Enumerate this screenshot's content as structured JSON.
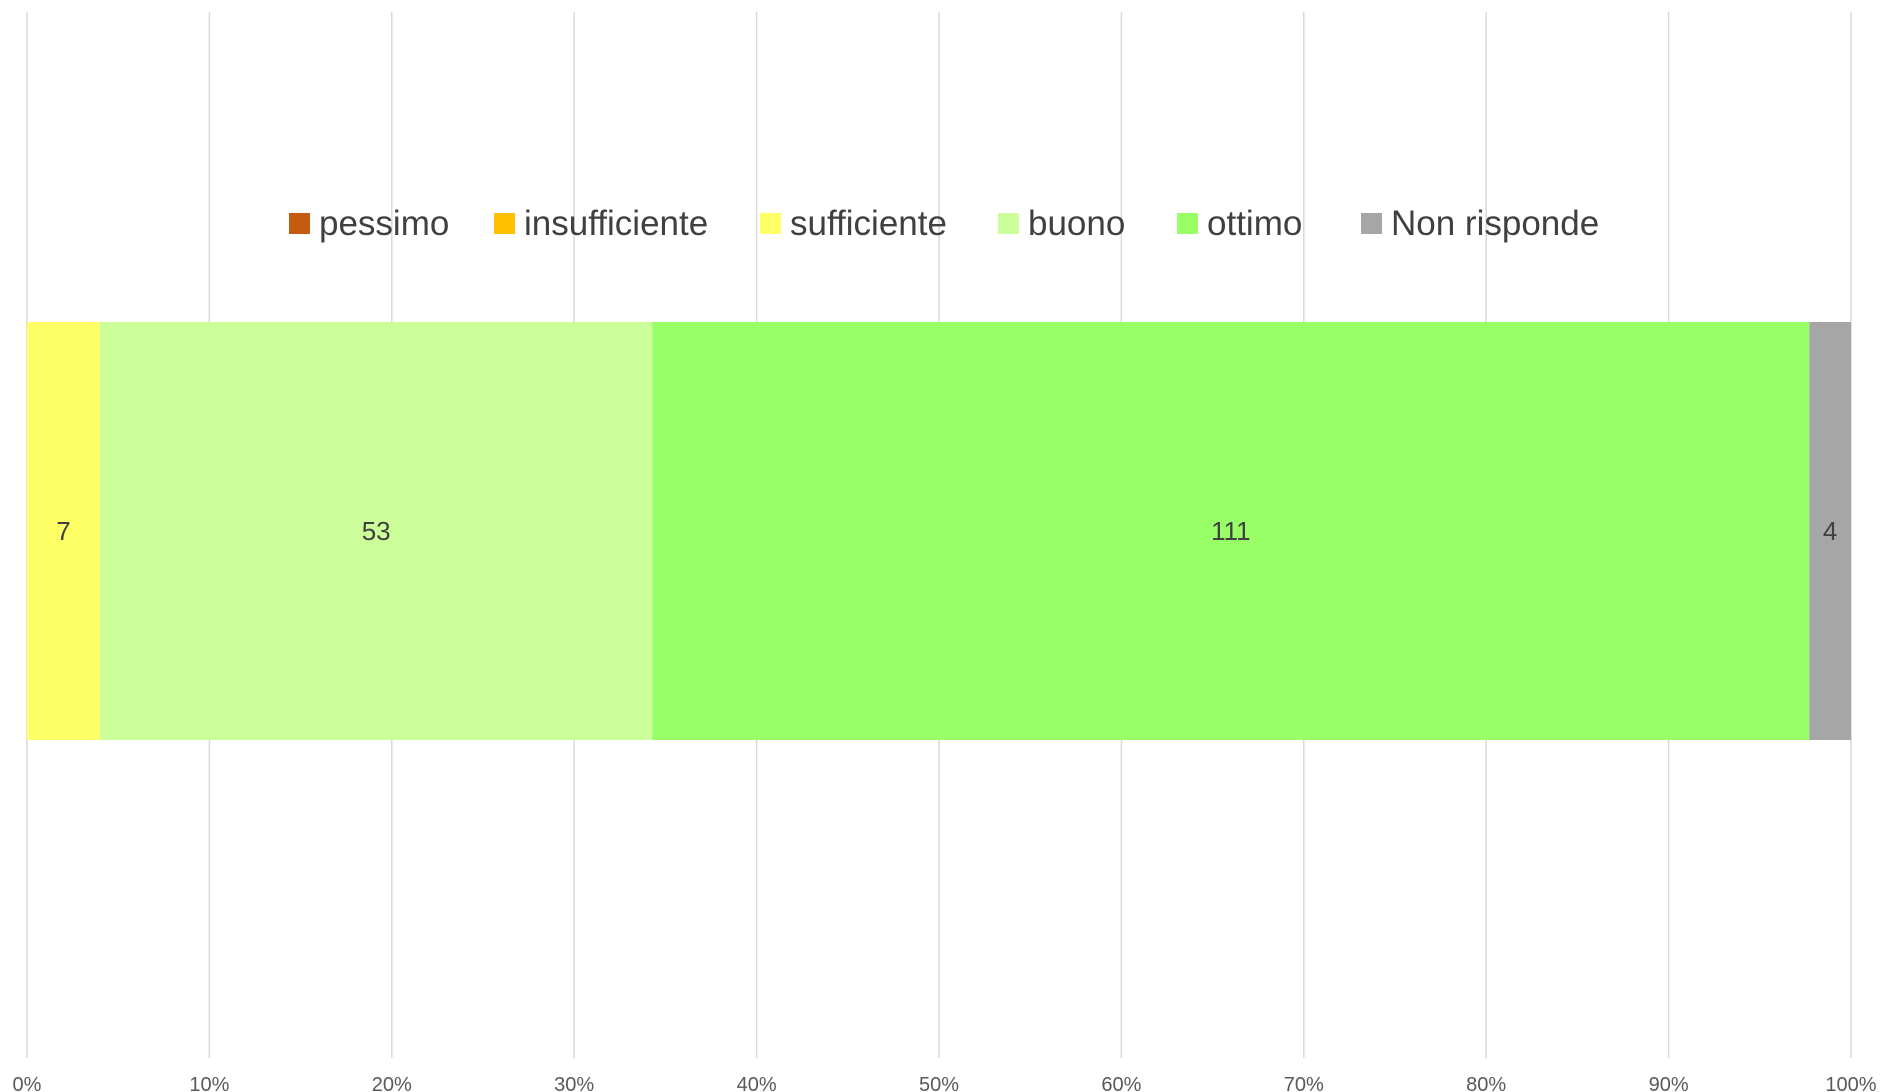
{
  "chart_data": {
    "type": "bar",
    "orientation": "horizontal",
    "stacked": "percent",
    "categories": [
      ""
    ],
    "series": [
      {
        "name": "pessimo",
        "values": [
          0
        ],
        "color": "#C55A11"
      },
      {
        "name": "insufficiente",
        "values": [
          0
        ],
        "color": "#FFC000"
      },
      {
        "name": "sufficiente",
        "values": [
          7
        ],
        "color": "#FFFF66"
      },
      {
        "name": "buono",
        "values": [
          53
        ],
        "color": "#CCFF99"
      },
      {
        "name": "ottimo",
        "values": [
          111
        ],
        "color": "#99FF66"
      },
      {
        "name": "Non risponde",
        "values": [
          4
        ],
        "color": "#A6A6A6"
      }
    ],
    "data_labels": [
      "",
      "",
      "7",
      "53",
      "111",
      "4"
    ],
    "x_ticks": [
      "0%",
      "10%",
      "20%",
      "30%",
      "40%",
      "50%",
      "60%",
      "70%",
      "80%",
      "90%",
      "100%"
    ],
    "xlim": [
      0,
      100
    ],
    "grid": "vertical",
    "legend_position": "top",
    "title": "",
    "xlabel": "",
    "ylabel": ""
  }
}
